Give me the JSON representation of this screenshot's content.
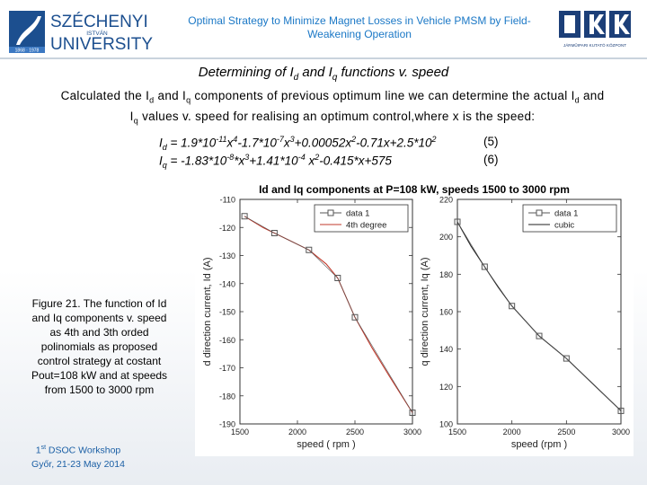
{
  "header": {
    "university_line1": "SZÉCHENYI",
    "university_line2": "ISTVÁN",
    "university_line3": "UNIVERSITY",
    "university_badge": "1868 · 1978",
    "title": "Optimal Strategy to Minimize Magnet Losses in Vehicle PMSM by Field-Weakening Operation",
    "logo_right_text": "JÁRMŰIPARI KUTATÓ KÖZPONT"
  },
  "subtitle": {
    "prefix": "Determining of ",
    "id_var": "I",
    "id_sub": "d",
    "mid": " and ",
    "iq_var": "I",
    "iq_sub": "q",
    "suffix": " functions   v. speed"
  },
  "intro": {
    "line1_a": "Calculated the I",
    "line1_sub1": "d",
    "line1_b": " and I",
    "line1_sub2": "q",
    "line1_c": " components of previous optimum line we can determine the actual I",
    "line1_sub3": "d",
    "line1_d": " and",
    "line2_a": "I",
    "line2_sub": "q",
    "line2_b": " values v. speed for realising an optimum control,where x is the speed:"
  },
  "equations": [
    {
      "lhs": "I",
      "sub": "d",
      "rhs": " = 1.9*10",
      "exp1": "-11",
      "t2": "x",
      "exp2": "4",
      "t3": "-1.7*10",
      "exp3": "-7",
      "t4": "x",
      "exp4": "3",
      "t5": "+0.00052x",
      "exp5": "2",
      "t6": "-0.71x+2.5*10",
      "exp6": "2",
      "number": "(5)"
    },
    {
      "lhs": "I",
      "sub": "q",
      "rhs": " = -1.83*10",
      "exp1": "-8",
      "t2": "*x",
      "exp2": "3",
      "t3": "+1.41*10",
      "exp3": "-4",
      "t4": " x",
      "exp4": "2",
      "t5": "-0.415*x+575",
      "exp5": "",
      "t6": "",
      "exp6": "",
      "number": "(6)"
    }
  ],
  "caption": "Figure 21. The function of Id and Iq components v. speed as 4th and 3th orded polinomials as proposed control strategy at  costant Pout=108 kW and at speeds from 1500 to 3000 rpm",
  "footer": {
    "line1_a": "1",
    "line1_sup": "st",
    "line1_b": " DSOC Workshop",
    "line2": "Győr, 21-23 May 2014"
  },
  "chart_data": [
    {
      "type": "line",
      "title": "Id and Iq components at P=108 kW, speeds 1500 to 3000 rpm",
      "xlabel": "speed  ( rpm )",
      "ylabel": "d direction current, Id (A)",
      "xlim": [
        1500,
        3000
      ],
      "ylim": [
        -190,
        -110
      ],
      "xticks": [
        1500,
        2000,
        2500,
        3000
      ],
      "yticks": [
        -110,
        -120,
        -130,
        -140,
        -150,
        -160,
        -170,
        -180,
        -190
      ],
      "grid": false,
      "legend_position": "top-right",
      "series": [
        {
          "name": "data 1",
          "kind": "markers",
          "color": "#555555",
          "x": [
            1540,
            1800,
            2100,
            2350,
            2500,
            3000
          ],
          "y": [
            -116,
            -122,
            -128,
            -138,
            -152,
            -186
          ]
        },
        {
          "name": "4th degree",
          "kind": "line",
          "color": "#c0392b",
          "x": [
            1540,
            1700,
            1800,
            1950,
            2100,
            2250,
            2350,
            2500,
            2650,
            2800,
            3000
          ],
          "y": [
            -116,
            -120,
            -122,
            -125,
            -128,
            -133,
            -138,
            -152,
            -163,
            -173,
            -186
          ]
        }
      ]
    },
    {
      "type": "line",
      "title": "",
      "xlabel": "speed (rpm )",
      "ylabel": "q direction current, Iq (A)",
      "xlim": [
        1500,
        3000
      ],
      "ylim": [
        100,
        220
      ],
      "xticks": [
        1500,
        2000,
        2500,
        3000
      ],
      "yticks": [
        100,
        120,
        140,
        160,
        180,
        200,
        220
      ],
      "grid": false,
      "legend_position": "top-right",
      "series": [
        {
          "name": "data 1",
          "kind": "markers",
          "color": "#555555",
          "x": [
            1500,
            1750,
            2000,
            2250,
            2500,
            3000
          ],
          "y": [
            208,
            184,
            163,
            147,
            135,
            107
          ]
        },
        {
          "name": "cubic",
          "kind": "line",
          "color": "#222222",
          "x": [
            1500,
            1625,
            1750,
            1875,
            2000,
            2125,
            2250,
            2375,
            2500,
            2750,
            3000
          ],
          "y": [
            208,
            195,
            184,
            173,
            163,
            155,
            147,
            141,
            135,
            121,
            107
          ]
        }
      ]
    }
  ]
}
